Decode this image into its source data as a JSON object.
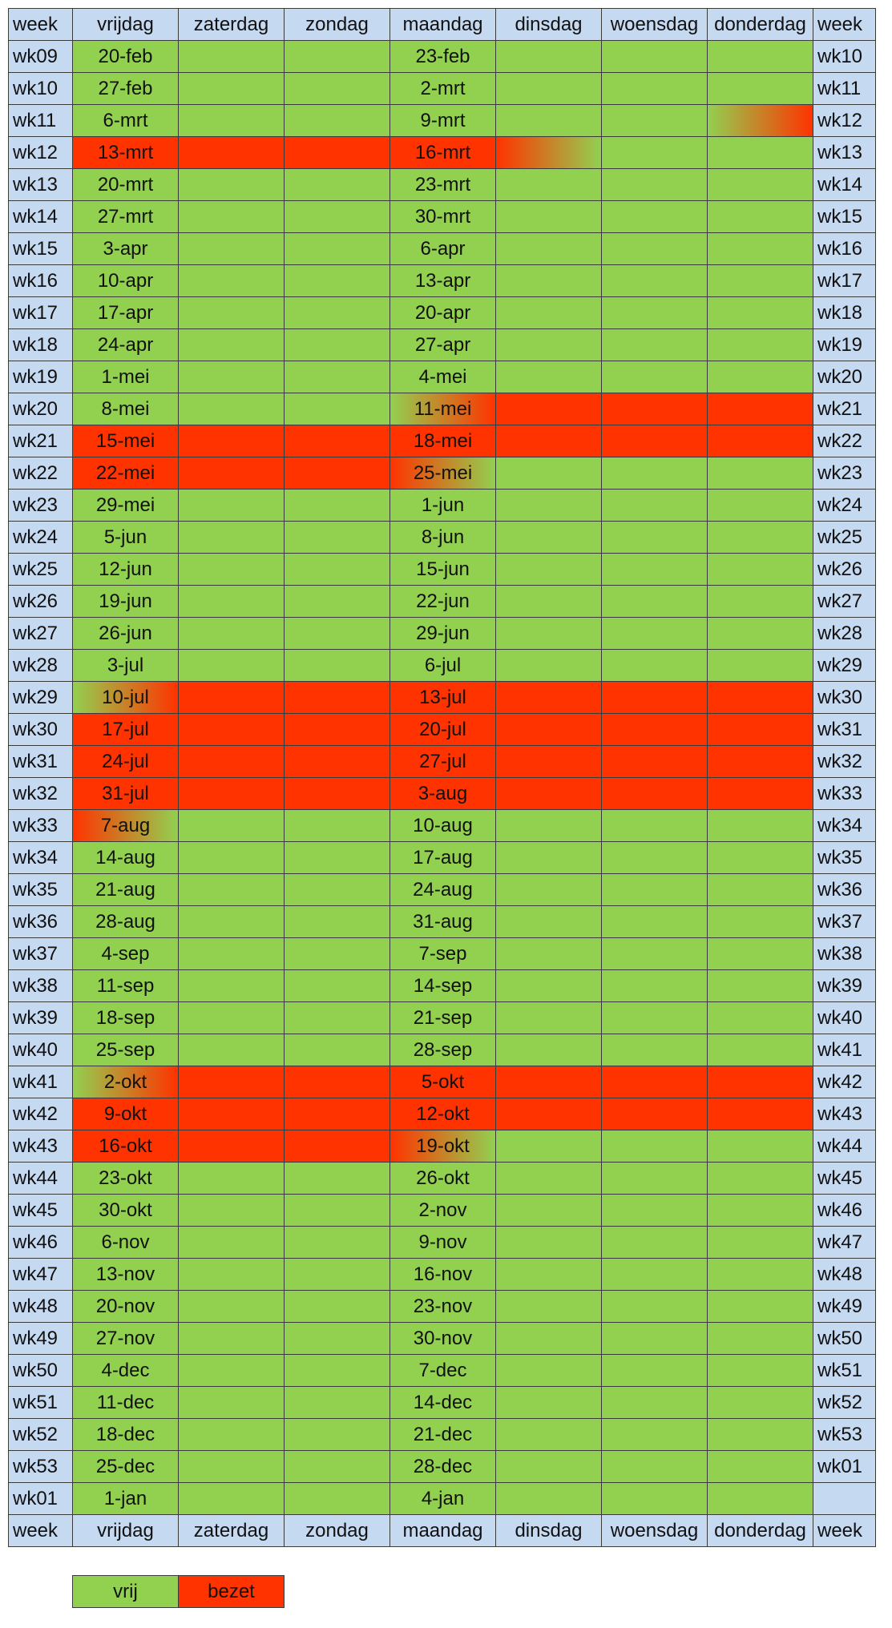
{
  "columns": [
    "week",
    "vrijdag",
    "zaterdag",
    "zondag",
    "maandag",
    "dinsdag",
    "woensdag",
    "donderdag",
    "week"
  ],
  "rows": [
    {
      "week": "wk09",
      "vrijdag": "20-feb",
      "maandag": "23-feb",
      "next_week": "wk10",
      "fills": [
        "#92d050",
        "#92d050",
        "#92d050",
        "#92d050",
        "#92d050",
        "#92d050",
        "#92d050"
      ]
    },
    {
      "week": "wk10",
      "vrijdag": "27-feb",
      "maandag": "2-mrt",
      "next_week": "wk11",
      "fills": [
        "#92d050",
        "#92d050",
        "#92d050",
        "#92d050",
        "#92d050",
        "#92d050",
        "#92d050"
      ]
    },
    {
      "week": "wk11",
      "vrijdag": "6-mrt",
      "maandag": "9-mrt",
      "next_week": "wk12",
      "fills": [
        "#92d050",
        "#92d050",
        "#92d050",
        "#92d050",
        "#92d050",
        "#92d050",
        "linear-gradient(90deg, #92d050, #ff3300)"
      ]
    },
    {
      "week": "wk12",
      "vrijdag": "13-mrt",
      "maandag": "16-mrt",
      "next_week": "wk13",
      "fills": [
        "#ff3300",
        "#ff3300",
        "#ff3300",
        "#ff3300",
        "linear-gradient(90deg, #ff3300, #92d050)",
        "#92d050",
        "#92d050"
      ]
    },
    {
      "week": "wk13",
      "vrijdag": "20-mrt",
      "maandag": "23-mrt",
      "next_week": "wk14",
      "fills": [
        "#92d050",
        "#92d050",
        "#92d050",
        "#92d050",
        "#92d050",
        "#92d050",
        "#92d050"
      ]
    },
    {
      "week": "wk14",
      "vrijdag": "27-mrt",
      "maandag": "30-mrt",
      "next_week": "wk15",
      "fills": [
        "#92d050",
        "#92d050",
        "#92d050",
        "#92d050",
        "#92d050",
        "#92d050",
        "#92d050"
      ]
    },
    {
      "week": "wk15",
      "vrijdag": "3-apr",
      "maandag": "6-apr",
      "next_week": "wk16",
      "fills": [
        "#92d050",
        "#92d050",
        "#92d050",
        "#92d050",
        "#92d050",
        "#92d050",
        "#92d050"
      ]
    },
    {
      "week": "wk16",
      "vrijdag": "10-apr",
      "maandag": "13-apr",
      "next_week": "wk17",
      "fills": [
        "#92d050",
        "#92d050",
        "#92d050",
        "#92d050",
        "#92d050",
        "#92d050",
        "#92d050"
      ]
    },
    {
      "week": "wk17",
      "vrijdag": "17-apr",
      "maandag": "20-apr",
      "next_week": "wk18",
      "fills": [
        "#92d050",
        "#92d050",
        "#92d050",
        "#92d050",
        "#92d050",
        "#92d050",
        "#92d050"
      ]
    },
    {
      "week": "wk18",
      "vrijdag": "24-apr",
      "maandag": "27-apr",
      "next_week": "wk19",
      "fills": [
        "#92d050",
        "#92d050",
        "#92d050",
        "#92d050",
        "#92d050",
        "#92d050",
        "#92d050"
      ]
    },
    {
      "week": "wk19",
      "vrijdag": "1-mei",
      "maandag": "4-mei",
      "next_week": "wk20",
      "fills": [
        "#92d050",
        "#92d050",
        "#92d050",
        "#92d050",
        "#92d050",
        "#92d050",
        "#92d050"
      ]
    },
    {
      "week": "wk20",
      "vrijdag": "8-mei",
      "maandag": "11-mei",
      "next_week": "wk21",
      "fills": [
        "#92d050",
        "#92d050",
        "#92d050",
        "linear-gradient(90deg, #92d050, #ff3300)",
        "#ff3300",
        "#ff3300",
        "#ff3300"
      ]
    },
    {
      "week": "wk21",
      "vrijdag": "15-mei",
      "maandag": "18-mei",
      "next_week": "wk22",
      "fills": [
        "#ff3300",
        "#ff3300",
        "#ff3300",
        "#ff3300",
        "#ff3300",
        "#ff3300",
        "#ff3300"
      ]
    },
    {
      "week": "wk22",
      "vrijdag": "22-mei",
      "maandag": "25-mei",
      "next_week": "wk23",
      "fills": [
        "#ff3300",
        "#ff3300",
        "#ff3300",
        "linear-gradient(90deg, #ff3300, #92d050)",
        "#92d050",
        "#92d050",
        "#92d050"
      ]
    },
    {
      "week": "wk23",
      "vrijdag": "29-mei",
      "maandag": "1-jun",
      "next_week": "wk24",
      "fills": [
        "#92d050",
        "#92d050",
        "#92d050",
        "#92d050",
        "#92d050",
        "#92d050",
        "#92d050"
      ]
    },
    {
      "week": "wk24",
      "vrijdag": "5-jun",
      "maandag": "8-jun",
      "next_week": "wk25",
      "fills": [
        "#92d050",
        "#92d050",
        "#92d050",
        "#92d050",
        "#92d050",
        "#92d050",
        "#92d050"
      ]
    },
    {
      "week": "wk25",
      "vrijdag": "12-jun",
      "maandag": "15-jun",
      "next_week": "wk26",
      "fills": [
        "#92d050",
        "#92d050",
        "#92d050",
        "#92d050",
        "#92d050",
        "#92d050",
        "#92d050"
      ]
    },
    {
      "week": "wk26",
      "vrijdag": "19-jun",
      "maandag": "22-jun",
      "next_week": "wk27",
      "fills": [
        "#92d050",
        "#92d050",
        "#92d050",
        "#92d050",
        "#92d050",
        "#92d050",
        "#92d050"
      ]
    },
    {
      "week": "wk27",
      "vrijdag": "26-jun",
      "maandag": "29-jun",
      "next_week": "wk28",
      "fills": [
        "#92d050",
        "#92d050",
        "#92d050",
        "#92d050",
        "#92d050",
        "#92d050",
        "#92d050"
      ]
    },
    {
      "week": "wk28",
      "vrijdag": "3-jul",
      "maandag": "6-jul",
      "next_week": "wk29",
      "fills": [
        "#92d050",
        "#92d050",
        "#92d050",
        "#92d050",
        "#92d050",
        "#92d050",
        "#92d050"
      ]
    },
    {
      "week": "wk29",
      "vrijdag": "10-jul",
      "maandag": "13-jul",
      "next_week": "wk30",
      "fills": [
        "linear-gradient(90deg, #92d050, #ff3300)",
        "#ff3300",
        "#ff3300",
        "#ff3300",
        "#ff3300",
        "#ff3300",
        "#ff3300"
      ]
    },
    {
      "week": "wk30",
      "vrijdag": "17-jul",
      "maandag": "20-jul",
      "next_week": "wk31",
      "fills": [
        "#ff3300",
        "#ff3300",
        "#ff3300",
        "#ff3300",
        "#ff3300",
        "#ff3300",
        "#ff3300"
      ]
    },
    {
      "week": "wk31",
      "vrijdag": "24-jul",
      "maandag": "27-jul",
      "next_week": "wk32",
      "fills": [
        "#ff3300",
        "#ff3300",
        "#ff3300",
        "#ff3300",
        "#ff3300",
        "#ff3300",
        "#ff3300"
      ]
    },
    {
      "week": "wk32",
      "vrijdag": "31-jul",
      "maandag": "3-aug",
      "next_week": "wk33",
      "fills": [
        "#ff3300",
        "#ff3300",
        "#ff3300",
        "#ff3300",
        "#ff3300",
        "#ff3300",
        "#ff3300"
      ]
    },
    {
      "week": "wk33",
      "vrijdag": "7-aug",
      "maandag": "10-aug",
      "next_week": "wk34",
      "fills": [
        "linear-gradient(90deg, #ff3300, #92d050)",
        "#92d050",
        "#92d050",
        "#92d050",
        "#92d050",
        "#92d050",
        "#92d050"
      ]
    },
    {
      "week": "wk34",
      "vrijdag": "14-aug",
      "maandag": "17-aug",
      "next_week": "wk35",
      "fills": [
        "#92d050",
        "#92d050",
        "#92d050",
        "#92d050",
        "#92d050",
        "#92d050",
        "#92d050"
      ]
    },
    {
      "week": "wk35",
      "vrijdag": "21-aug",
      "maandag": "24-aug",
      "next_week": "wk36",
      "fills": [
        "#92d050",
        "#92d050",
        "#92d050",
        "#92d050",
        "#92d050",
        "#92d050",
        "#92d050"
      ]
    },
    {
      "week": "wk36",
      "vrijdag": "28-aug",
      "maandag": "31-aug",
      "next_week": "wk37",
      "fills": [
        "#92d050",
        "#92d050",
        "#92d050",
        "#92d050",
        "#92d050",
        "#92d050",
        "#92d050"
      ]
    },
    {
      "week": "wk37",
      "vrijdag": "4-sep",
      "maandag": "7-sep",
      "next_week": "wk38",
      "fills": [
        "#92d050",
        "#92d050",
        "#92d050",
        "#92d050",
        "#92d050",
        "#92d050",
        "#92d050"
      ]
    },
    {
      "week": "wk38",
      "vrijdag": "11-sep",
      "maandag": "14-sep",
      "next_week": "wk39",
      "fills": [
        "#92d050",
        "#92d050",
        "#92d050",
        "#92d050",
        "#92d050",
        "#92d050",
        "#92d050"
      ]
    },
    {
      "week": "wk39",
      "vrijdag": "18-sep",
      "maandag": "21-sep",
      "next_week": "wk40",
      "fills": [
        "#92d050",
        "#92d050",
        "#92d050",
        "#92d050",
        "#92d050",
        "#92d050",
        "#92d050"
      ]
    },
    {
      "week": "wk40",
      "vrijdag": "25-sep",
      "maandag": "28-sep",
      "next_week": "wk41",
      "fills": [
        "#92d050",
        "#92d050",
        "#92d050",
        "#92d050",
        "#92d050",
        "#92d050",
        "#92d050"
      ]
    },
    {
      "week": "wk41",
      "vrijdag": "2-okt",
      "maandag": "5-okt",
      "next_week": "wk42",
      "fills": [
        "linear-gradient(90deg, #92d050, #ff3300)",
        "#ff3300",
        "#ff3300",
        "#ff3300",
        "#ff3300",
        "#ff3300",
        "#ff3300"
      ]
    },
    {
      "week": "wk42",
      "vrijdag": "9-okt",
      "maandag": "12-okt",
      "next_week": "wk43",
      "fills": [
        "#ff3300",
        "#ff3300",
        "#ff3300",
        "#ff3300",
        "#ff3300",
        "#ff3300",
        "#ff3300"
      ]
    },
    {
      "week": "wk43",
      "vrijdag": "16-okt",
      "maandag": "19-okt",
      "next_week": "wk44",
      "fills": [
        "#ff3300",
        "#ff3300",
        "#ff3300",
        "linear-gradient(90deg, #ff3300, #92d050)",
        "#92d050",
        "#92d050",
        "#92d050"
      ]
    },
    {
      "week": "wk44",
      "vrijdag": "23-okt",
      "maandag": "26-okt",
      "next_week": "wk45",
      "fills": [
        "#92d050",
        "#92d050",
        "#92d050",
        "#92d050",
        "#92d050",
        "#92d050",
        "#92d050"
      ]
    },
    {
      "week": "wk45",
      "vrijdag": "30-okt",
      "maandag": "2-nov",
      "next_week": "wk46",
      "fills": [
        "#92d050",
        "#92d050",
        "#92d050",
        "#92d050",
        "#92d050",
        "#92d050",
        "#92d050"
      ]
    },
    {
      "week": "wk46",
      "vrijdag": "6-nov",
      "maandag": "9-nov",
      "next_week": "wk47",
      "fills": [
        "#92d050",
        "#92d050",
        "#92d050",
        "#92d050",
        "#92d050",
        "#92d050",
        "#92d050"
      ]
    },
    {
      "week": "wk47",
      "vrijdag": "13-nov",
      "maandag": "16-nov",
      "next_week": "wk48",
      "fills": [
        "#92d050",
        "#92d050",
        "#92d050",
        "#92d050",
        "#92d050",
        "#92d050",
        "#92d050"
      ]
    },
    {
      "week": "wk48",
      "vrijdag": "20-nov",
      "maandag": "23-nov",
      "next_week": "wk49",
      "fills": [
        "#92d050",
        "#92d050",
        "#92d050",
        "#92d050",
        "#92d050",
        "#92d050",
        "#92d050"
      ]
    },
    {
      "week": "wk49",
      "vrijdag": "27-nov",
      "maandag": "30-nov",
      "next_week": "wk50",
      "fills": [
        "#92d050",
        "#92d050",
        "#92d050",
        "#92d050",
        "#92d050",
        "#92d050",
        "#92d050"
      ]
    },
    {
      "week": "wk50",
      "vrijdag": "4-dec",
      "maandag": "7-dec",
      "next_week": "wk51",
      "fills": [
        "#92d050",
        "#92d050",
        "#92d050",
        "#92d050",
        "#92d050",
        "#92d050",
        "#92d050"
      ]
    },
    {
      "week": "wk51",
      "vrijdag": "11-dec",
      "maandag": "14-dec",
      "next_week": "wk52",
      "fills": [
        "#92d050",
        "#92d050",
        "#92d050",
        "#92d050",
        "#92d050",
        "#92d050",
        "#92d050"
      ]
    },
    {
      "week": "wk52",
      "vrijdag": "18-dec",
      "maandag": "21-dec",
      "next_week": "wk53",
      "fills": [
        "#92d050",
        "#92d050",
        "#92d050",
        "#92d050",
        "#92d050",
        "#92d050",
        "#92d050"
      ]
    },
    {
      "week": "wk53",
      "vrijdag": "25-dec",
      "maandag": "28-dec",
      "next_week": "wk01",
      "fills": [
        "#92d050",
        "#92d050",
        "#92d050",
        "#92d050",
        "#92d050",
        "#92d050",
        "#92d050"
      ]
    },
    {
      "week": "wk01",
      "vrijdag": "1-jan",
      "maandag": "4-jan",
      "next_week": null,
      "fills": [
        "#92d050",
        "#92d050",
        "#92d050",
        "#92d050",
        "#92d050",
        "#92d050",
        "#92d050"
      ]
    }
  ],
  "week_color": "#c5d9f1",
  "legend": [
    {
      "label": "vrij",
      "color": "#92d050"
    },
    {
      "label": "bezet",
      "color": "#ff3300"
    }
  ]
}
